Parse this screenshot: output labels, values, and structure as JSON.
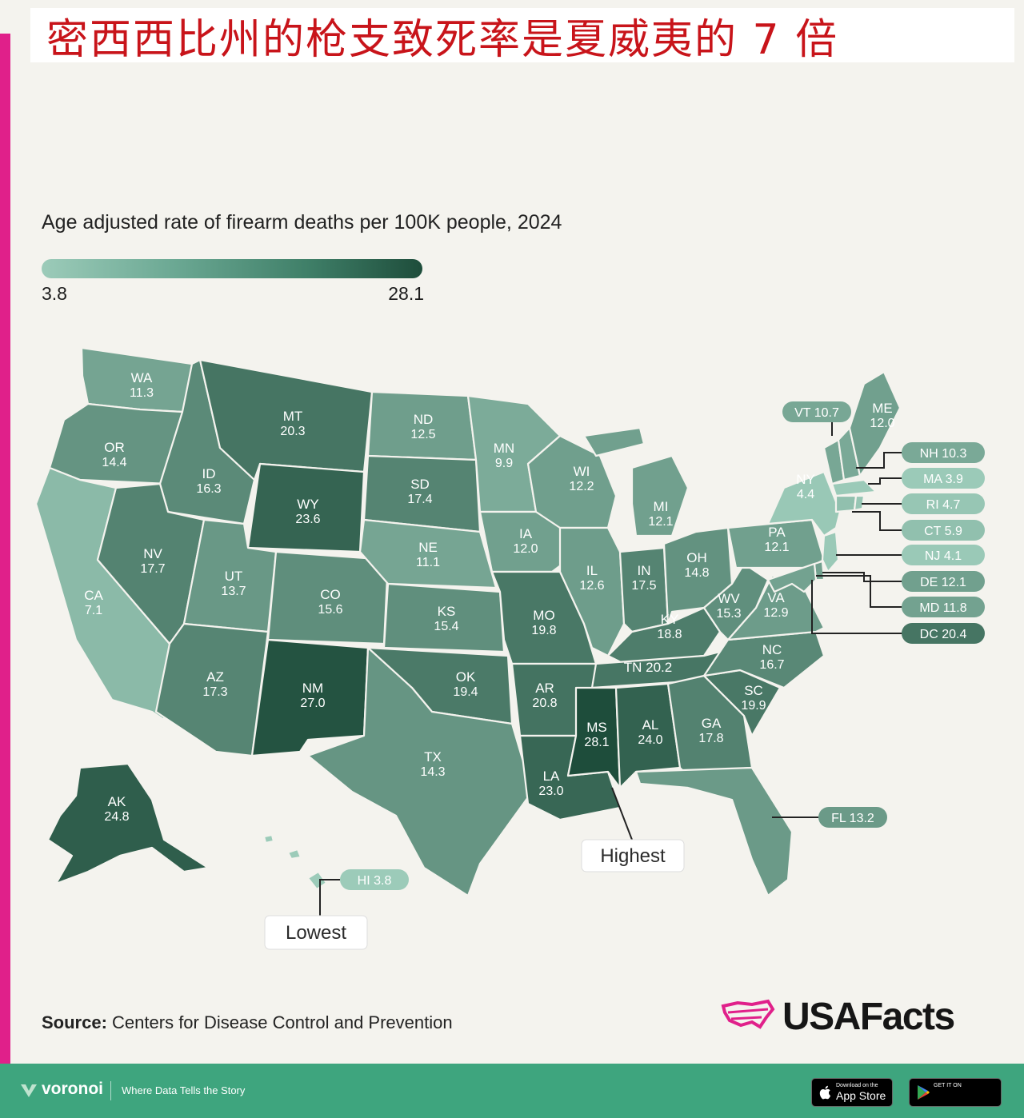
{
  "headline": "密西西比州的枪支致死率是夏威夷的 7 倍",
  "legend": {
    "title": "Age adjusted rate of firearm deaths per 100K people, 2024",
    "min": "3.8",
    "max": "28.1"
  },
  "colors": {
    "scale_low": "#9ccbb9",
    "scale_high": "#1e4d3b",
    "headline": "#c8141a",
    "footer": "#3ea57e",
    "accent_bar": "#e0208a"
  },
  "states": [
    {
      "abbr": "WA",
      "value": "11.3"
    },
    {
      "abbr": "OR",
      "value": "14.4"
    },
    {
      "abbr": "CA",
      "value": "7.1"
    },
    {
      "abbr": "ID",
      "value": "16.3"
    },
    {
      "abbr": "NV",
      "value": "17.7"
    },
    {
      "abbr": "MT",
      "value": "20.3"
    },
    {
      "abbr": "WY",
      "value": "23.6"
    },
    {
      "abbr": "UT",
      "value": "13.7"
    },
    {
      "abbr": "AZ",
      "value": "17.3"
    },
    {
      "abbr": "CO",
      "value": "15.6"
    },
    {
      "abbr": "NM",
      "value": "27.0"
    },
    {
      "abbr": "ND",
      "value": "12.5"
    },
    {
      "abbr": "SD",
      "value": "17.4"
    },
    {
      "abbr": "NE",
      "value": "11.1"
    },
    {
      "abbr": "KS",
      "value": "15.4"
    },
    {
      "abbr": "OK",
      "value": "19.4"
    },
    {
      "abbr": "TX",
      "value": "14.3"
    },
    {
      "abbr": "MN",
      "value": "9.9"
    },
    {
      "abbr": "IA",
      "value": "12.0"
    },
    {
      "abbr": "MO",
      "value": "19.8"
    },
    {
      "abbr": "AR",
      "value": "20.8"
    },
    {
      "abbr": "LA",
      "value": "23.0"
    },
    {
      "abbr": "WI",
      "value": "12.2"
    },
    {
      "abbr": "IL",
      "value": "12.6"
    },
    {
      "abbr": "MI",
      "value": "12.1"
    },
    {
      "abbr": "IN",
      "value": "17.5"
    },
    {
      "abbr": "OH",
      "value": "14.8"
    },
    {
      "abbr": "KY",
      "value": "18.8"
    },
    {
      "abbr": "TN",
      "value": "20.2"
    },
    {
      "abbr": "MS",
      "value": "28.1"
    },
    {
      "abbr": "AL",
      "value": "24.0"
    },
    {
      "abbr": "GA",
      "value": "17.8"
    },
    {
      "abbr": "FL",
      "value": "13.2"
    },
    {
      "abbr": "SC",
      "value": "19.9"
    },
    {
      "abbr": "NC",
      "value": "16.7"
    },
    {
      "abbr": "VA",
      "value": "12.9"
    },
    {
      "abbr": "WV",
      "value": "15.3"
    },
    {
      "abbr": "PA",
      "value": "12.1"
    },
    {
      "abbr": "NY",
      "value": "4.4"
    },
    {
      "abbr": "VT",
      "value": "10.7"
    },
    {
      "abbr": "ME",
      "value": "12.0"
    },
    {
      "abbr": "NH",
      "value": "10.3"
    },
    {
      "abbr": "MA",
      "value": "3.9"
    },
    {
      "abbr": "RI",
      "value": "4.7"
    },
    {
      "abbr": "CT",
      "value": "5.9"
    },
    {
      "abbr": "NJ",
      "value": "4.1"
    },
    {
      "abbr": "DE",
      "value": "12.1"
    },
    {
      "abbr": "MD",
      "value": "11.8"
    },
    {
      "abbr": "DC",
      "value": "20.4"
    },
    {
      "abbr": "AK",
      "value": "24.8"
    },
    {
      "abbr": "HI",
      "value": "3.8"
    }
  ],
  "annotations": {
    "highest": "Highest",
    "lowest": "Lowest"
  },
  "source": {
    "label": "Source:",
    "text": "Centers for Disease Control and Prevention"
  },
  "brand": "USAFacts",
  "footer": {
    "name": "voronoi",
    "tagline": "Where Data Tells the Story",
    "app_store_small": "Download on the",
    "app_store_big": "App Store",
    "google_small": "GET IT ON"
  }
}
